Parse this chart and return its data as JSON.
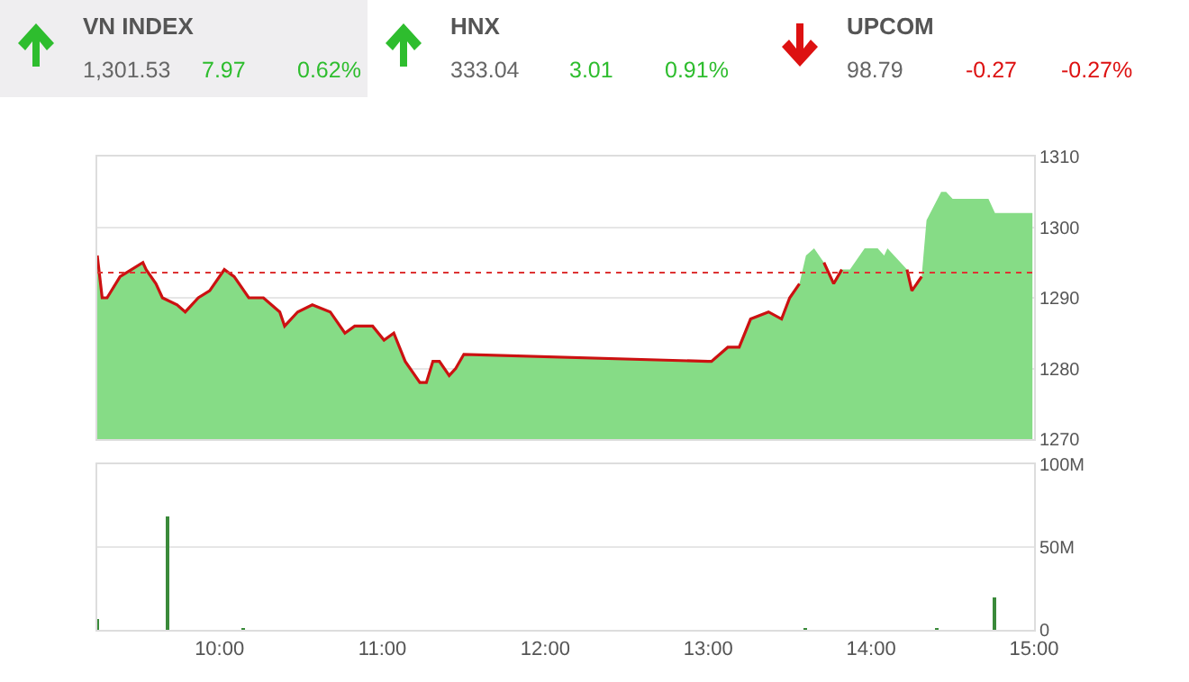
{
  "chart_data": [
    {
      "type": "other",
      "title": "VN INDEX",
      "color": "#2ebd2e",
      "annotations": [
        "1,301.53",
        "7.97",
        "0.62%"
      ]
    },
    {
      "type": "other",
      "title": "HNX",
      "color": "#2ebd2e",
      "annotations": [
        "333.04",
        "3.01",
        "0.91%"
      ]
    },
    {
      "type": "other",
      "title": "UPCOM",
      "color": "#dd1111",
      "annotations": [
        "98.79",
        "-0.27",
        "-0.27%"
      ]
    },
    {
      "type": "area",
      "x": [
        9.25,
        9.28,
        9.31,
        9.39,
        9.46,
        9.53,
        9.55,
        9.61,
        9.65,
        9.74,
        9.79,
        9.87,
        9.94,
        10.03,
        10.09,
        10.18,
        10.27,
        10.37,
        10.4,
        10.48,
        10.57,
        10.68,
        10.77,
        10.83,
        10.94,
        11.01,
        11.07,
        11.14,
        11.23,
        11.27,
        11.31,
        11.35,
        11.41,
        11.45,
        11.5,
        13.0,
        13.02,
        13.12,
        13.19,
        13.26,
        13.37,
        13.45,
        13.5,
        13.56,
        13.6,
        13.65,
        13.71,
        13.77,
        13.82,
        13.87,
        13.96,
        14.04,
        14.08,
        14.1,
        14.22,
        14.25,
        14.31,
        14.34,
        14.43,
        14.46,
        14.5,
        14.72,
        14.76,
        14.99
      ],
      "series": [
        {
          "type": "area",
          "color": "#86dc86",
          "values": [
            1296,
            1290,
            1290,
            1293,
            1294,
            1295,
            1294,
            1292,
            1290,
            1289,
            1288,
            1290,
            1291,
            1294,
            1293,
            1290,
            1290,
            1288,
            1286,
            1288,
            1289,
            1288,
            1285,
            1286,
            1286,
            1284,
            1285,
            1281,
            1278,
            1278,
            1281,
            1281,
            1279,
            1280,
            1282,
            1281,
            1281,
            1283,
            1283,
            1287,
            1288,
            1287,
            1290,
            1292,
            1296,
            1297,
            1295,
            1292,
            1294,
            1294,
            1297,
            1297,
            1296,
            1297,
            1294,
            1291,
            1293,
            1301,
            1305,
            1305,
            1304,
            1304,
            1302,
            1302
          ]
        },
        {
          "type": "line",
          "color": "#cc1111",
          "x": [
            9.25,
            9.28,
            9.31,
            9.39,
            9.46,
            9.53,
            9.55,
            9.61,
            9.65,
            9.74,
            9.79,
            9.87,
            9.94,
            10.03,
            10.09,
            10.18,
            10.27,
            10.37,
            10.4,
            10.48,
            10.57,
            10.68,
            10.77,
            10.83,
            10.94,
            11.01,
            11.07,
            11.14,
            11.23,
            11.27,
            11.31,
            11.35,
            11.41,
            11.45,
            11.5,
            13.0,
            13.02,
            13.12,
            13.19,
            13.26,
            13.37,
            13.45,
            13.5,
            13.56
          ],
          "values": [
            1296,
            1290,
            1290,
            1293,
            1294,
            1295,
            1294,
            1292,
            1290,
            1289,
            1288,
            1290,
            1291,
            1294,
            1293,
            1290,
            1290,
            1288,
            1286,
            1288,
            1289,
            1288,
            1285,
            1286,
            1286,
            1284,
            1285,
            1281,
            1278,
            1278,
            1281,
            1281,
            1279,
            1280,
            1282,
            1281,
            1281,
            1283,
            1283,
            1287,
            1288,
            1287,
            1290,
            1292
          ]
        },
        {
          "type": "line",
          "color": "#cc1111",
          "x": [
            13.71,
            13.77,
            13.82
          ],
          "values": [
            1295,
            1292,
            1294
          ]
        },
        {
          "type": "line",
          "color": "#cc1111",
          "x": [
            14.22,
            14.25,
            14.31
          ],
          "values": [
            1294,
            1291,
            1293
          ]
        }
      ],
      "xlim": [
        9.25,
        15
      ],
      "ylim": [
        1270,
        1310
      ],
      "yticks": [
        1270,
        1280,
        1290,
        1300,
        1310
      ],
      "ref_lines": [
        {
          "axis": "y",
          "value": 1293.56,
          "color": "#dd3333",
          "line_style": "dotted"
        }
      ],
      "grid": "y",
      "tick_labels": "y"
    },
    {
      "type": "bar",
      "x": [
        9.25,
        9.68,
        10.15,
        13.6,
        14.4,
        14.76
      ],
      "color": "#3a8a3a",
      "values": [
        7,
        68,
        1,
        1,
        1,
        20
      ],
      "xlim": [
        9.25,
        15
      ],
      "xticks": [
        {
          "value": 10,
          "label": "10:00"
        },
        {
          "value": 11,
          "label": "11:00"
        },
        {
          "value": 12,
          "label": "12:00"
        },
        {
          "value": 13,
          "label": "13:00"
        },
        {
          "value": 14,
          "label": "14:00"
        },
        {
          "value": 15,
          "label": "15:00"
        }
      ],
      "ylim": [
        0,
        100
      ],
      "yticks": [
        0,
        {
          "value": 50,
          "label": "50M"
        },
        {
          "value": 100,
          "label": "100M"
        }
      ],
      "grid": "y"
    }
  ]
}
